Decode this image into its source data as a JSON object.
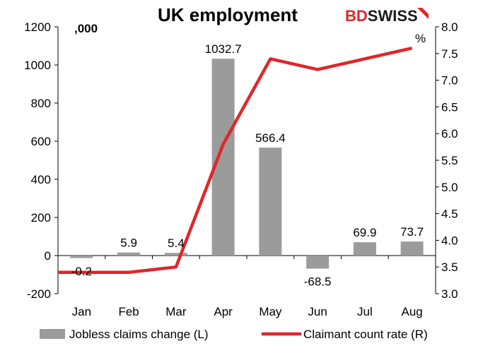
{
  "logo": {
    "part1": "BD",
    "part2": "SWISS",
    "color1": "#e0262b",
    "color2": "#1a1a1a"
  },
  "chart_data": {
    "type": "bar+line",
    "title": "UK employment",
    "categories": [
      "Jan",
      "Feb",
      "Mar",
      "Apr",
      "May",
      "Jun",
      "Jul",
      "Aug"
    ],
    "left_axis": {
      "unit": ",000",
      "ylim": [
        -200,
        1200
      ],
      "ticks": [
        -200,
        0,
        200,
        400,
        600,
        800,
        1000,
        1200
      ],
      "tick_labels": [
        "-200",
        "0",
        "200",
        "400",
        "600",
        "800",
        "1000",
        "1200"
      ]
    },
    "right_axis": {
      "unit": "%",
      "ylim": [
        3.0,
        8.0
      ],
      "ticks": [
        3.0,
        3.5,
        4.0,
        4.5,
        5.0,
        5.5,
        6.0,
        6.5,
        7.0,
        7.5,
        8.0
      ],
      "tick_labels": [
        "3.0",
        "3.5",
        "4.0",
        "4.5",
        "5.0",
        "5.5",
        "6.0",
        "6.5",
        "7.0",
        "7.5",
        "8.0"
      ]
    },
    "series": [
      {
        "name": "Jobless claims change (L)",
        "type": "bar",
        "axis": "left",
        "color": "#9b9b9b",
        "values": [
          -0.2,
          5.9,
          5.4,
          1032.7,
          566.4,
          -68.5,
          69.9,
          73.7
        ],
        "labels": [
          "-0.2",
          "5.9",
          "5.4",
          "1032.7",
          "566.4",
          "-68.5",
          "69.9",
          "73.7"
        ],
        "rendered_values": [
          -13,
          16,
          14,
          1032.7,
          566.4,
          -68.5,
          69.9,
          73.7
        ]
      },
      {
        "name": "Claimant count rate (R)",
        "type": "line",
        "axis": "right",
        "color": "#e0262b",
        "values": [
          3.4,
          3.4,
          3.5,
          5.8,
          7.4,
          7.2,
          7.4,
          7.6
        ]
      }
    ],
    "legend_position": "bottom",
    "grid": false
  }
}
